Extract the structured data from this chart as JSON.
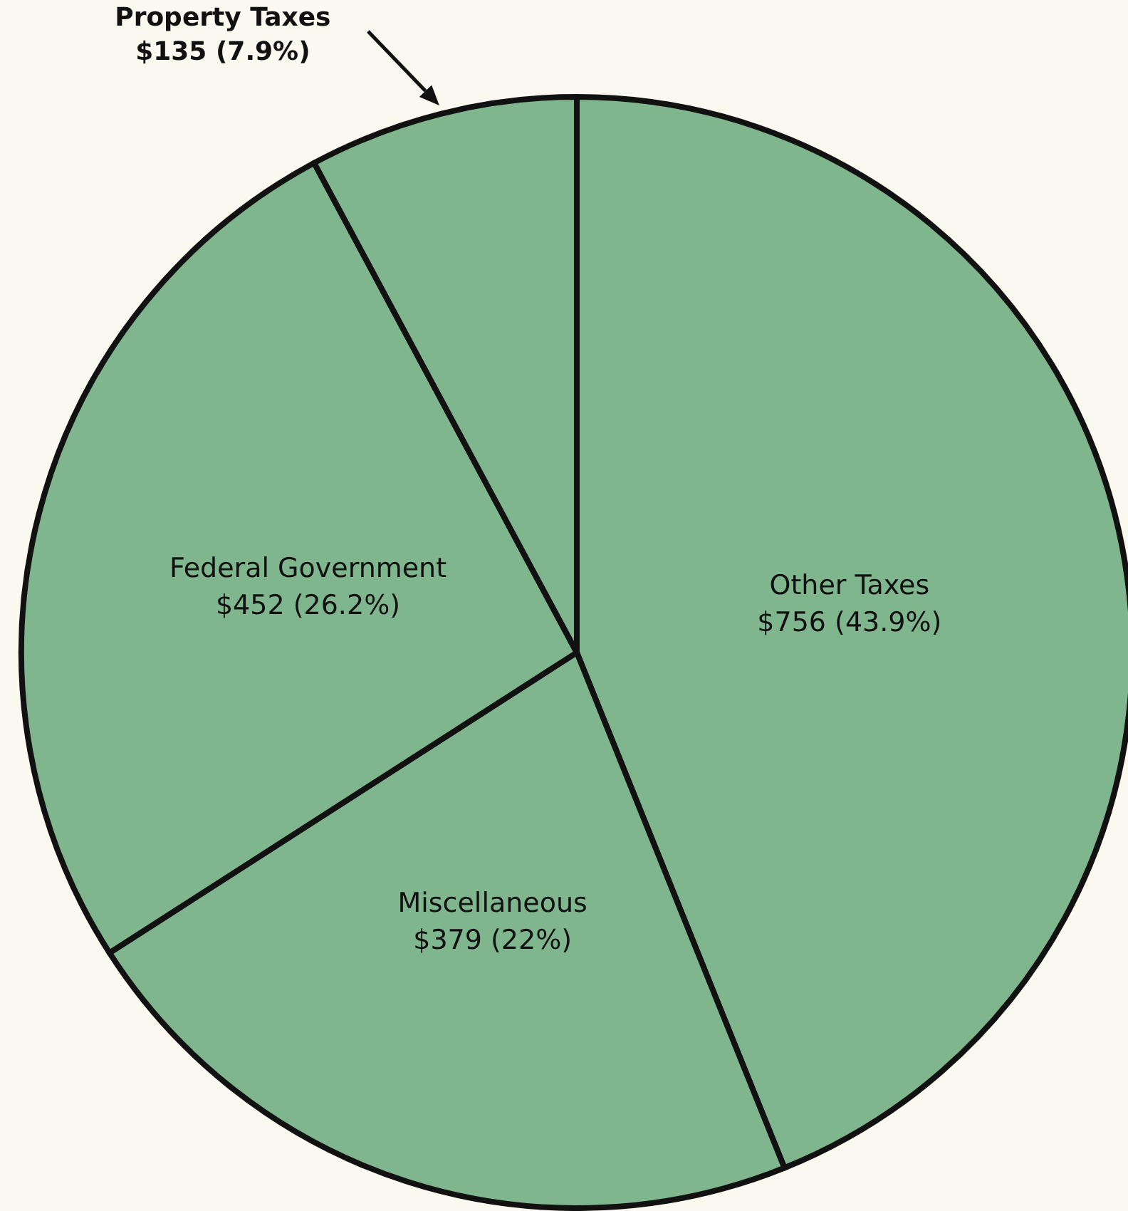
{
  "chart_data": {
    "type": "pie",
    "categories": [
      "Other Taxes",
      "Miscellaneous",
      "Federal Government",
      "Property Taxes"
    ],
    "values": [
      756,
      379,
      452,
      135
    ],
    "value_labels": [
      "$756  (43.9%)",
      "$379  (22%)",
      "$452  (26.2%)",
      "$135  (7.9%)"
    ],
    "colors": [
      "#7fb68e",
      "#7fb68e",
      "#7fb68e",
      "#7fb68e"
    ]
  }
}
